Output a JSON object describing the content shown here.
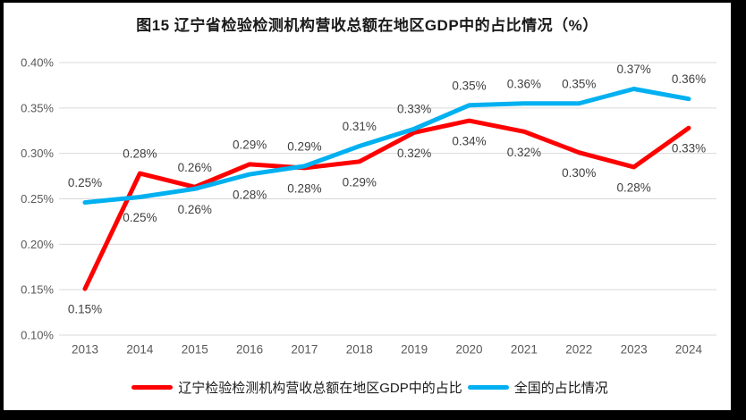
{
  "page": {
    "frame_color": "#000000",
    "background": "#ffffff"
  },
  "chart": {
    "title": "图15 辽宁省检验检测机构营收总额在地区GDP中的占比情况（%）",
    "legend": [
      {
        "label": "辽宁检验检测机构营收总额在地区GDP中的占比",
        "color": "#FF0000"
      },
      {
        "label": "全国的占比情况",
        "color": "#00B0F0"
      }
    ]
  },
  "chart_data": {
    "type": "line",
    "title": "图15 辽宁省检验检测机构营收总额在地区GDP中的占比情况（%）",
    "categories": [
      "2013",
      "2014",
      "2015",
      "2016",
      "2017",
      "2018",
      "2019",
      "2020",
      "2021",
      "2022",
      "2023",
      "2024"
    ],
    "y_axis": {
      "min": 0.1,
      "max": 0.4,
      "step": 0.05,
      "grid": true,
      "ticks": [
        {
          "label": "0.40%",
          "value": 0.4
        },
        {
          "label": "0.35%",
          "value": 0.35
        },
        {
          "label": "0.30%",
          "value": 0.3
        },
        {
          "label": "0.25%",
          "value": 0.25
        },
        {
          "label": "0.20%",
          "value": 0.2
        },
        {
          "label": "0.15%",
          "value": 0.15
        },
        {
          "label": "0.10%",
          "value": 0.1
        }
      ]
    },
    "series": [
      {
        "name": "辽宁检验检测机构营收总额在地区GDP中的占比",
        "color": "#FF0000",
        "values": [
          0.15,
          0.28,
          0.26,
          0.29,
          0.28,
          0.29,
          0.32,
          0.34,
          0.32,
          0.3,
          0.28,
          0.33
        ],
        "labels": [
          "0.15%",
          "0.28%",
          "0.26%",
          "0.29%",
          "0.28%",
          "0.29%",
          "0.32%",
          "0.34%",
          "0.32%",
          "0.30%",
          "0.28%",
          "0.33%"
        ],
        "plot_values": [
          0.151,
          0.278,
          0.263,
          0.288,
          0.284,
          0.291,
          0.323,
          0.336,
          0.324,
          0.301,
          0.285,
          0.328
        ],
        "label_side": [
          "below",
          "above",
          "above",
          "above",
          "below",
          "below",
          "below",
          "below",
          "below",
          "below",
          "below",
          "below"
        ]
      },
      {
        "name": "全国的占比情况",
        "color": "#00B0F0",
        "values": [
          0.25,
          0.25,
          0.26,
          0.28,
          0.29,
          0.31,
          0.33,
          0.35,
          0.36,
          0.35,
          0.37,
          0.36
        ],
        "labels": [
          "0.25%",
          "0.25%",
          "0.26%",
          "0.28%",
          "0.29%",
          "0.31%",
          "0.33%",
          "0.35%",
          "0.36%",
          "0.35%",
          "0.37%",
          "0.36%"
        ],
        "plot_values": [
          0.246,
          0.252,
          0.261,
          0.277,
          0.286,
          0.308,
          0.327,
          0.353,
          0.355,
          0.355,
          0.371,
          0.36
        ],
        "label_side": [
          "above",
          "below",
          "below",
          "below",
          "above",
          "above",
          "above",
          "above",
          "above",
          "above",
          "above",
          "above"
        ]
      }
    ],
    "legend_position": "bottom",
    "colors": {
      "grid": "#D9D9D9",
      "axis_text": "#595959",
      "data_label_text": "#404040"
    }
  }
}
